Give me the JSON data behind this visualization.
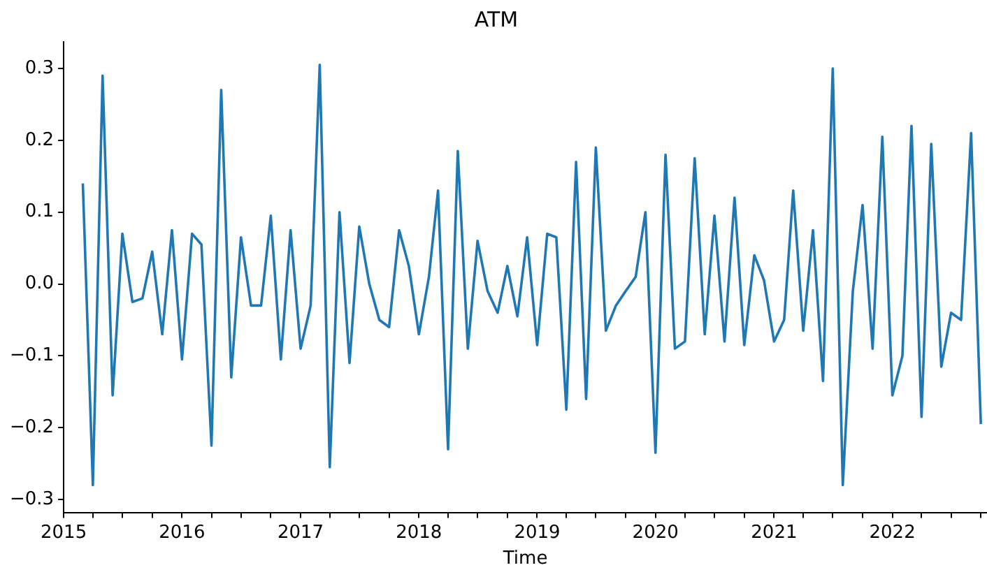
{
  "chart_data": {
    "type": "line",
    "title": "ATM",
    "xlabel": "Time",
    "x": [
      "2015-03",
      "2015-04",
      "2015-05",
      "2015-06",
      "2015-07",
      "2015-08",
      "2015-09",
      "2015-10",
      "2015-11",
      "2015-12",
      "2016-01",
      "2016-02",
      "2016-03",
      "2016-04",
      "2016-05",
      "2016-06",
      "2016-07",
      "2016-08",
      "2016-09",
      "2016-10",
      "2016-11",
      "2016-12",
      "2017-01",
      "2017-02",
      "2017-03",
      "2017-04",
      "2017-05",
      "2017-06",
      "2017-07",
      "2017-08",
      "2017-09",
      "2017-10",
      "2017-11",
      "2017-12",
      "2018-01",
      "2018-02",
      "2018-03",
      "2018-04",
      "2018-05",
      "2018-06",
      "2018-07",
      "2018-08",
      "2018-09",
      "2018-10",
      "2018-11",
      "2018-12",
      "2019-01",
      "2019-02",
      "2019-03",
      "2019-04",
      "2019-05",
      "2019-06",
      "2019-07",
      "2019-08",
      "2019-09",
      "2019-10",
      "2019-11",
      "2019-12",
      "2020-01",
      "2020-02",
      "2020-03",
      "2020-04",
      "2020-05",
      "2020-06",
      "2020-07",
      "2020-08",
      "2020-09",
      "2020-10",
      "2020-11",
      "2020-12",
      "2021-01",
      "2021-02",
      "2021-03",
      "2021-04",
      "2021-05",
      "2021-06",
      "2021-07",
      "2021-08",
      "2021-09",
      "2021-10",
      "2021-11",
      "2021-12",
      "2022-01",
      "2022-02",
      "2022-03",
      "2022-04",
      "2022-05",
      "2022-06",
      "2022-07",
      "2022-08",
      "2022-09",
      "2022-10"
    ],
    "series": [
      {
        "color": "#1f77b4",
        "values": [
          0.14,
          -0.28,
          0.29,
          -0.155,
          0.07,
          -0.025,
          -0.02,
          0.045,
          -0.07,
          0.075,
          -0.105,
          0.07,
          0.055,
          -0.225,
          0.27,
          -0.13,
          0.065,
          -0.03,
          -0.03,
          0.095,
          -0.105,
          0.075,
          -0.09,
          -0.03,
          0.305,
          -0.255,
          0.1,
          -0.11,
          0.08,
          0.0,
          -0.05,
          -0.06,
          0.075,
          0.025,
          -0.07,
          0.01,
          0.13,
          -0.23,
          0.185,
          -0.09,
          0.06,
          -0.01,
          -0.04,
          0.025,
          -0.045,
          0.065,
          -0.085,
          0.07,
          0.065,
          -0.175,
          0.17,
          -0.16,
          0.19,
          -0.065,
          -0.03,
          -0.01,
          0.01,
          0.1,
          -0.235,
          0.18,
          -0.09,
          -0.08,
          0.175,
          -0.07,
          0.095,
          -0.08,
          0.12,
          -0.085,
          0.04,
          0.005,
          -0.08,
          -0.05,
          0.13,
          -0.065,
          0.075,
          -0.135,
          0.3,
          -0.28,
          -0.01,
          0.11,
          -0.09,
          0.205,
          -0.155,
          -0.1,
          0.22,
          -0.185,
          0.195,
          -0.115,
          -0.04,
          -0.05,
          0.21,
          -0.195
        ]
      }
    ],
    "xlim": [
      "2015-01-01",
      "2022-10-20"
    ],
    "xticks": [
      {
        "value": "2015",
        "label": "2015"
      },
      {
        "value": "2015-04",
        "label": null
      },
      {
        "value": "2015-07",
        "label": null
      },
      {
        "value": "2015-10",
        "label": null
      },
      {
        "value": "2016",
        "label": "2016"
      },
      {
        "value": "2016-04",
        "label": null
      },
      {
        "value": "2016-07",
        "label": null
      },
      {
        "value": "2016-10",
        "label": null
      },
      {
        "value": "2017",
        "label": "2017"
      },
      {
        "value": "2017-04",
        "label": null
      },
      {
        "value": "2017-07",
        "label": null
      },
      {
        "value": "2017-10",
        "label": null
      },
      {
        "value": "2018",
        "label": "2018"
      },
      {
        "value": "2018-04",
        "label": null
      },
      {
        "value": "2018-07",
        "label": null
      },
      {
        "value": "2018-10",
        "label": null
      },
      {
        "value": "2019",
        "label": "2019"
      },
      {
        "value": "2019-04",
        "label": null
      },
      {
        "value": "2019-07",
        "label": null
      },
      {
        "value": "2019-10",
        "label": null
      },
      {
        "value": "2020",
        "label": "2020"
      },
      {
        "value": "2020-04",
        "label": null
      },
      {
        "value": "2020-07",
        "label": null
      },
      {
        "value": "2020-10",
        "label": null
      },
      {
        "value": "2021",
        "label": "2021"
      },
      {
        "value": "2021-04",
        "label": null
      },
      {
        "value": "2021-07",
        "label": null
      },
      {
        "value": "2021-10",
        "label": null
      },
      {
        "value": "2022",
        "label": "2022"
      },
      {
        "value": "2022-04",
        "label": null
      },
      {
        "value": "2022-07",
        "label": null
      },
      {
        "value": "2022-10",
        "label": null
      }
    ],
    "ylim": [
      -0.318,
      0.337
    ],
    "yticks": [
      {
        "value": -0.3,
        "label": "−0.3"
      },
      {
        "value": -0.2,
        "label": "−0.2"
      },
      {
        "value": -0.1,
        "label": "−0.1"
      },
      {
        "value": 0,
        "label": "0.0"
      },
      0.1,
      0.2,
      0.3
    ],
    "grid": false,
    "legend": false,
    "marker": "none",
    "line_style": "solid"
  }
}
